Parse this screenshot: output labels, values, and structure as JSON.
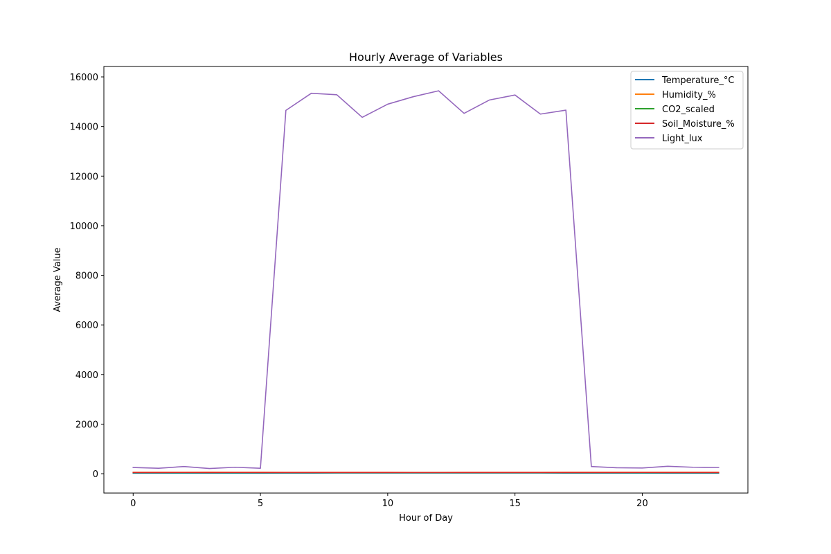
{
  "chart_data": {
    "type": "line",
    "title": "Hourly Average of Variables",
    "xlabel": "Hour of Day",
    "ylabel": "Average Value",
    "xlim": [
      -1.15,
      24.15
    ],
    "ylim": [
      -780,
      16420
    ],
    "xticks": [
      0,
      5,
      10,
      15,
      20
    ],
    "yticks": [
      0,
      2000,
      4000,
      6000,
      8000,
      10000,
      12000,
      14000,
      16000
    ],
    "grid": false,
    "legend_position": "top-right",
    "x": [
      0,
      1,
      2,
      3,
      4,
      5,
      6,
      7,
      8,
      9,
      10,
      11,
      12,
      13,
      14,
      15,
      16,
      17,
      18,
      19,
      20,
      21,
      22,
      23
    ],
    "series": [
      {
        "name": "Temperature_°C",
        "color": "#1f77b4",
        "values": [
          22,
          21,
          21,
          20,
          21,
          22,
          24,
          25,
          26,
          27,
          28,
          28,
          29,
          29,
          28,
          27,
          26,
          25,
          24,
          23,
          23,
          22,
          22,
          21
        ]
      },
      {
        "name": "Humidity_%",
        "color": "#ff7f0e",
        "values": [
          60,
          61,
          60,
          62,
          61,
          60,
          58,
          57,
          56,
          55,
          55,
          54,
          54,
          55,
          56,
          57,
          58,
          59,
          60,
          60,
          61,
          61,
          60,
          60
        ]
      },
      {
        "name": "CO2_scaled",
        "color": "#2ca02c",
        "values": [
          40,
          40,
          41,
          40,
          40,
          41,
          42,
          42,
          43,
          42,
          42,
          43,
          42,
          42,
          43,
          42,
          41,
          41,
          40,
          40,
          40,
          41,
          40,
          40
        ]
      },
      {
        "name": "Soil_Moisture_%",
        "color": "#d62728",
        "values": [
          50,
          50,
          51,
          50,
          51,
          50,
          49,
          49,
          48,
          48,
          48,
          47,
          47,
          48,
          48,
          49,
          49,
          50,
          50,
          50,
          51,
          50,
          50,
          50
        ]
      },
      {
        "name": "Light_lux",
        "color": "#9467bd",
        "values": [
          250,
          220,
          290,
          210,
          260,
          220,
          14650,
          15340,
          15280,
          14370,
          14900,
          15200,
          15440,
          14530,
          15070,
          15270,
          14500,
          14660,
          290,
          240,
          230,
          300,
          260,
          250
        ]
      }
    ]
  }
}
